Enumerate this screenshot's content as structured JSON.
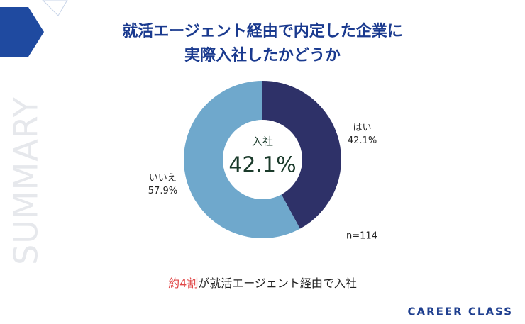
{
  "chart_data": {
    "type": "pie",
    "donut": true,
    "title_lines": [
      "就活エージェント経由で内定した企業に",
      "実際入社したかどうか"
    ],
    "categories": [
      "はい",
      "いいえ"
    ],
    "values": [
      42.1,
      57.9
    ],
    "value_labels": [
      "42.1%",
      "57.9%"
    ],
    "colors": [
      "#2e3168",
      "#6fa8cc"
    ],
    "center_label": "入社",
    "annotation": "n=114"
  },
  "side_text": "SUMMARY",
  "note": {
    "highlight": "約4割",
    "rest": "が就活エージェント経由で入社"
  },
  "brand": "CAREER CLASS"
}
